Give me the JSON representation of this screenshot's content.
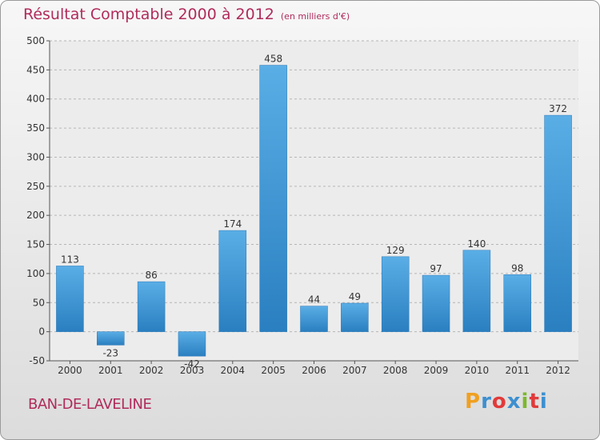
{
  "chart_data": {
    "type": "bar",
    "title": "Résultat Comptable 2000 à 2012",
    "subtitle": "(en milliers d'€)",
    "categories": [
      "2000",
      "2001",
      "2002",
      "2003",
      "2004",
      "2005",
      "2006",
      "2007",
      "2008",
      "2009",
      "2010",
      "2011",
      "2012"
    ],
    "values": [
      113,
      -23,
      86,
      -42,
      174,
      458,
      44,
      49,
      129,
      97,
      140,
      98,
      372
    ],
    "labels": [
      "113",
      "-23",
      "86",
      "-42",
      "174",
      "458",
      "44",
      "49",
      "129",
      "97",
      "140",
      "98",
      "372"
    ],
    "ylim": [
      -50,
      500
    ],
    "yticks": [
      -50,
      0,
      50,
      100,
      150,
      200,
      250,
      300,
      350,
      400,
      450,
      500
    ],
    "grid": true,
    "xlabel": "",
    "ylabel": "",
    "bar_color": "#4a9fdc"
  },
  "footer": {
    "town": "BAN-DE-LAVELINE",
    "logo_letters": [
      "P",
      "r",
      "o",
      "x",
      "i",
      "t",
      "i"
    ],
    "logo_colors": [
      "#f0a020",
      "#3c8fd0",
      "#e23a3a",
      "#3c8fd0",
      "#7cb82f",
      "#e23a3a",
      "#3c8fd0"
    ]
  }
}
